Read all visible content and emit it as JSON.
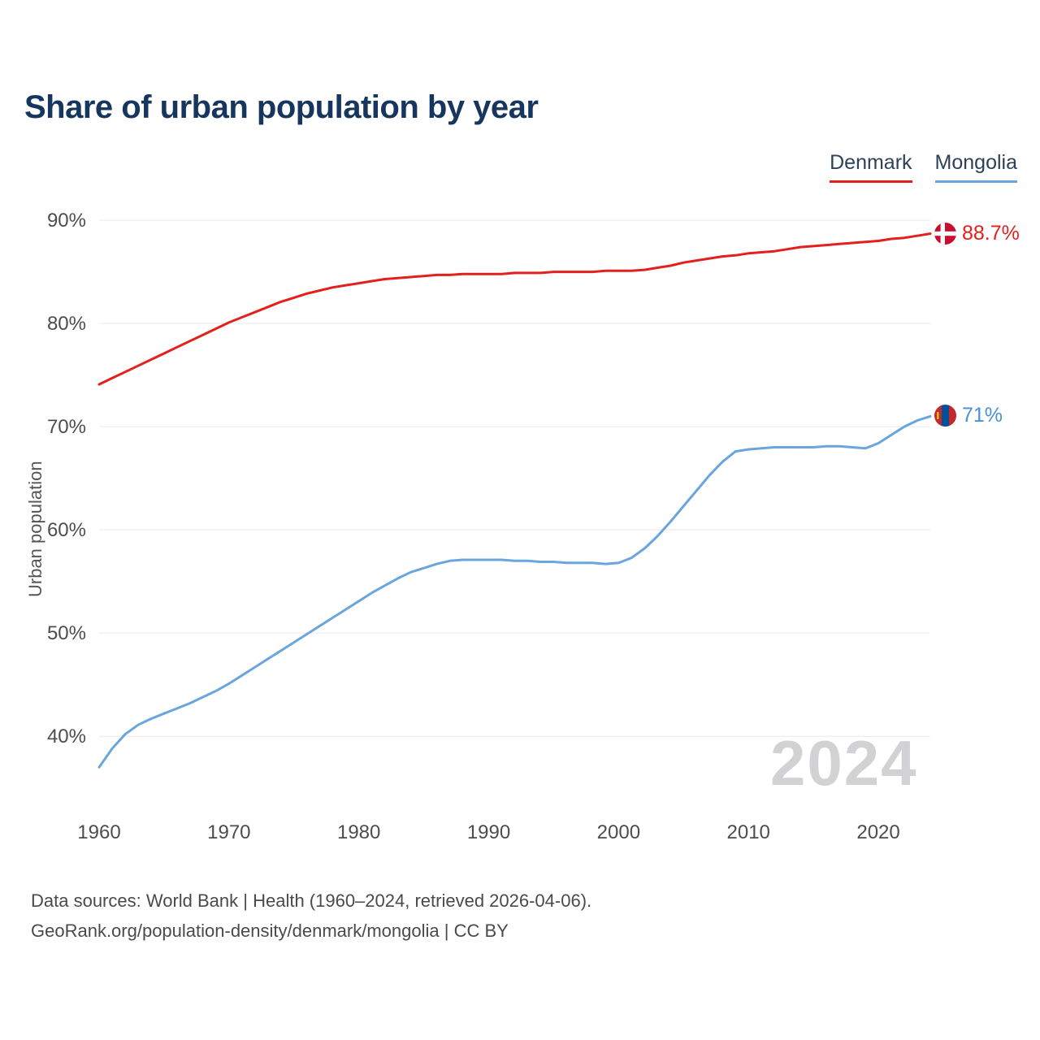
{
  "title": "Share of urban population by year",
  "watermark": "2024",
  "legend": [
    {
      "label": "Denmark",
      "color": "#e3201b"
    },
    {
      "label": "Mongolia",
      "color": "#6aa5de"
    }
  ],
  "end_labels": [
    {
      "series": "Denmark",
      "text": "88.7%",
      "color": "#e3201b",
      "flag": "denmark-flag-icon"
    },
    {
      "series": "Mongolia",
      "text": "71%",
      "color": "#4a90d9",
      "flag": "mongolia-flag-icon"
    }
  ],
  "footer": {
    "line1": "Data sources: World Bank | Health (1960–2024, retrieved 2026-04-06).",
    "line2": "GeoRank.org/population-density/denmark/mongolia | CC BY"
  },
  "chart_data": {
    "type": "line",
    "title": "Share of urban population by year",
    "xlabel": "",
    "ylabel": "Urban population",
    "grid": true,
    "legend_position": "top-right",
    "ylim": [
      36,
      93
    ],
    "yticks": [
      40,
      50,
      60,
      70,
      80,
      90
    ],
    "xticks": [
      1960,
      1970,
      1980,
      1990,
      2000,
      2010,
      2020
    ],
    "x": [
      1960,
      1961,
      1962,
      1963,
      1964,
      1965,
      1966,
      1967,
      1968,
      1969,
      1970,
      1971,
      1972,
      1973,
      1974,
      1975,
      1976,
      1977,
      1978,
      1979,
      1980,
      1981,
      1982,
      1983,
      1984,
      1985,
      1986,
      1987,
      1988,
      1989,
      1990,
      1991,
      1992,
      1993,
      1994,
      1995,
      1996,
      1997,
      1998,
      1999,
      2000,
      2001,
      2002,
      2003,
      2004,
      2005,
      2006,
      2007,
      2008,
      2009,
      2010,
      2011,
      2012,
      2013,
      2014,
      2015,
      2016,
      2017,
      2018,
      2019,
      2020,
      2021,
      2022,
      2023,
      2024
    ],
    "series": [
      {
        "name": "Denmark",
        "color": "#e3201b",
        "values": [
          74.1,
          74.7,
          75.3,
          75.9,
          76.5,
          77.1,
          77.7,
          78.3,
          78.9,
          79.5,
          80.1,
          80.6,
          81.1,
          81.6,
          82.1,
          82.5,
          82.9,
          83.2,
          83.5,
          83.7,
          83.9,
          84.1,
          84.3,
          84.4,
          84.5,
          84.6,
          84.7,
          84.7,
          84.8,
          84.8,
          84.8,
          84.8,
          84.9,
          84.9,
          84.9,
          85.0,
          85.0,
          85.0,
          85.0,
          85.1,
          85.1,
          85.1,
          85.2,
          85.4,
          85.6,
          85.9,
          86.1,
          86.3,
          86.5,
          86.6,
          86.8,
          86.9,
          87.0,
          87.2,
          87.4,
          87.5,
          87.6,
          87.7,
          87.8,
          87.9,
          88.0,
          88.2,
          88.3,
          88.5,
          88.7
        ]
      },
      {
        "name": "Mongolia",
        "color": "#6aa5de",
        "values": [
          37.0,
          38.8,
          40.2,
          41.1,
          41.7,
          42.2,
          42.7,
          43.2,
          43.8,
          44.4,
          45.1,
          45.9,
          46.7,
          47.5,
          48.3,
          49.1,
          49.9,
          50.7,
          51.5,
          52.3,
          53.1,
          53.9,
          54.6,
          55.3,
          55.9,
          56.3,
          56.7,
          57.0,
          57.1,
          57.1,
          57.1,
          57.1,
          57.0,
          57.0,
          56.9,
          56.9,
          56.8,
          56.8,
          56.8,
          56.7,
          56.8,
          57.3,
          58.2,
          59.4,
          60.8,
          62.3,
          63.8,
          65.3,
          66.6,
          67.6,
          67.8,
          67.9,
          68.0,
          68.0,
          68.0,
          68.0,
          68.1,
          68.1,
          68.0,
          67.9,
          68.4,
          69.2,
          70.0,
          70.6,
          71.0
        ]
      }
    ]
  }
}
